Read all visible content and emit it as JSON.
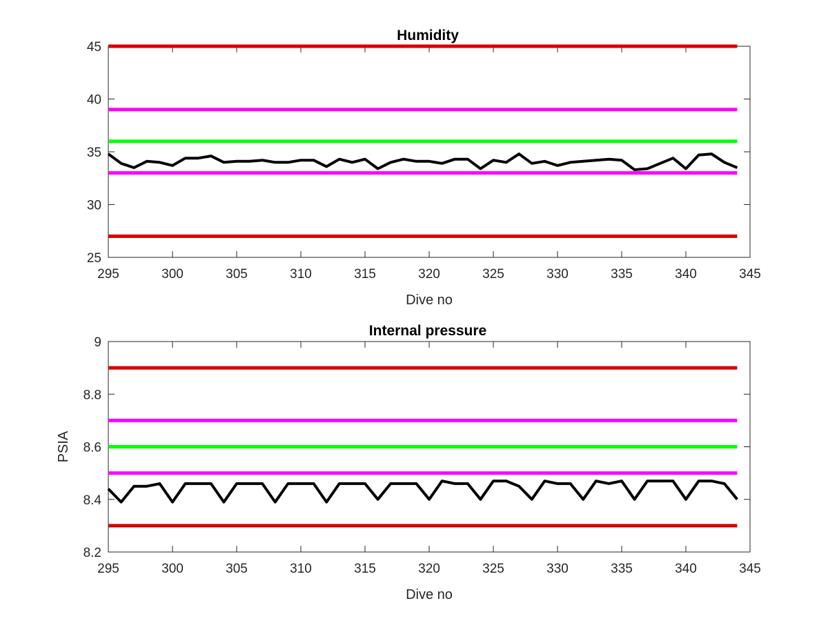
{
  "chart_data": [
    {
      "type": "line",
      "title": "Humidity",
      "xlabel": "Dive no",
      "ylabel": "",
      "xlim": [
        295,
        345
      ],
      "ylim": [
        25,
        45
      ],
      "xticks": [
        "295",
        "300",
        "305",
        "310",
        "315",
        "320",
        "325",
        "330",
        "335",
        "340",
        "345"
      ],
      "yticks": [
        "25",
        "30",
        "35",
        "40",
        "45"
      ],
      "grid": false,
      "thresholds": [
        {
          "y": 45,
          "color": "#d40000",
          "x_range": [
            295,
            344
          ]
        },
        {
          "y": 39,
          "color": "#ff00ff",
          "x_range": [
            295,
            344
          ]
        },
        {
          "y": 36,
          "color": "#00ff00",
          "x_range": [
            295,
            344
          ]
        },
        {
          "y": 33,
          "color": "#ff00ff",
          "x_range": [
            295,
            344
          ]
        },
        {
          "y": 27,
          "color": "#d40000",
          "x_range": [
            295,
            344
          ]
        }
      ],
      "series": [
        {
          "color": "#000000",
          "x": [
            295,
            296,
            297,
            298,
            299,
            300,
            301,
            302,
            303,
            304,
            305,
            306,
            307,
            308,
            309,
            310,
            311,
            312,
            313,
            314,
            315,
            316,
            317,
            318,
            319,
            320,
            321,
            322,
            323,
            324,
            325,
            326,
            327,
            328,
            329,
            330,
            331,
            332,
            333,
            334,
            335,
            336,
            337,
            338,
            339,
            340,
            341,
            342,
            343,
            344
          ],
          "values": [
            34.8,
            33.9,
            33.5,
            34.1,
            34.0,
            33.7,
            34.4,
            34.4,
            34.6,
            34.0,
            34.1,
            34.1,
            34.2,
            34.0,
            34.0,
            34.2,
            34.2,
            33.6,
            34.3,
            34.0,
            34.3,
            33.4,
            34.0,
            34.3,
            34.1,
            34.1,
            33.9,
            34.3,
            34.3,
            33.4,
            34.2,
            34.0,
            34.8,
            33.9,
            34.1,
            33.7,
            34.0,
            34.1,
            34.2,
            34.3,
            34.2,
            33.3,
            33.4,
            33.9,
            34.4,
            33.4,
            34.7,
            34.8,
            34.0,
            33.5
          ]
        }
      ]
    },
    {
      "type": "line",
      "title": "Internal pressure",
      "xlabel": "Dive no",
      "ylabel": "PSIA",
      "xlim": [
        295,
        345
      ],
      "ylim": [
        8.2,
        9
      ],
      "xticks": [
        "295",
        "300",
        "305",
        "310",
        "315",
        "320",
        "325",
        "330",
        "335",
        "340",
        "345"
      ],
      "yticks": [
        "8.2",
        "8.4",
        "8.6",
        "8.8",
        "9"
      ],
      "grid": false,
      "thresholds": [
        {
          "y": 8.9,
          "color": "#d40000",
          "x_range": [
            295,
            344
          ]
        },
        {
          "y": 8.7,
          "color": "#ff00ff",
          "x_range": [
            295,
            344
          ]
        },
        {
          "y": 8.6,
          "color": "#00ff00",
          "x_range": [
            295,
            344
          ]
        },
        {
          "y": 8.5,
          "color": "#ff00ff",
          "x_range": [
            295,
            344
          ]
        },
        {
          "y": 8.3,
          "color": "#d40000",
          "x_range": [
            295,
            344
          ]
        }
      ],
      "series": [
        {
          "color": "#000000",
          "x": [
            295,
            296,
            297,
            298,
            299,
            300,
            301,
            302,
            303,
            304,
            305,
            306,
            307,
            308,
            309,
            310,
            311,
            312,
            313,
            314,
            315,
            316,
            317,
            318,
            319,
            320,
            321,
            322,
            323,
            324,
            325,
            326,
            327,
            328,
            329,
            330,
            331,
            332,
            333,
            334,
            335,
            336,
            337,
            338,
            339,
            340,
            341,
            342,
            343,
            344
          ],
          "values": [
            8.44,
            8.39,
            8.45,
            8.45,
            8.46,
            8.39,
            8.46,
            8.46,
            8.46,
            8.39,
            8.46,
            8.46,
            8.46,
            8.39,
            8.46,
            8.46,
            8.46,
            8.39,
            8.46,
            8.46,
            8.46,
            8.4,
            8.46,
            8.46,
            8.46,
            8.4,
            8.47,
            8.46,
            8.46,
            8.4,
            8.47,
            8.47,
            8.45,
            8.4,
            8.47,
            8.46,
            8.46,
            8.4,
            8.47,
            8.46,
            8.47,
            8.4,
            8.47,
            8.47,
            8.47,
            8.4,
            8.47,
            8.47,
            8.46,
            8.4
          ]
        }
      ]
    }
  ]
}
